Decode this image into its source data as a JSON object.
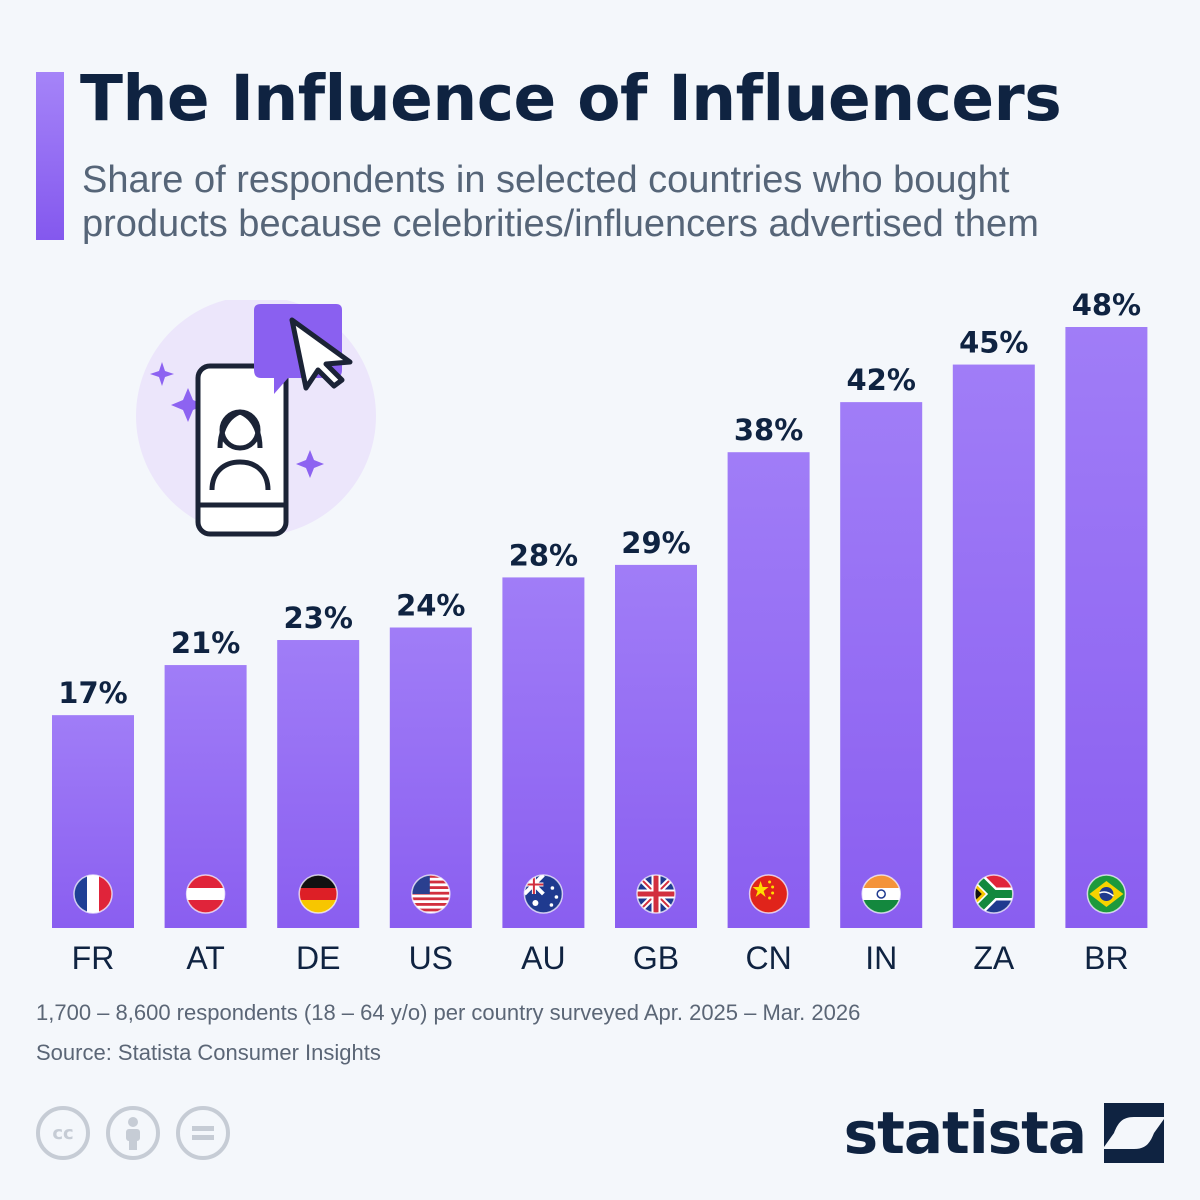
{
  "header": {
    "title": "The Influence of Influencers",
    "subtitle_line1": "Share of respondents in selected countries who bought",
    "subtitle_line2": "products because celebrities/influencers advertised them"
  },
  "colors": {
    "bar_top": "#a07df7",
    "bar_bottom": "#8a5ef0",
    "accent": "#8458ee",
    "text_dark": "#0f2341",
    "text_muted": "#5b6676"
  },
  "chart_data": {
    "type": "bar",
    "title": "The Influence of Influencers",
    "subtitle": "Share of respondents in selected countries who bought products because celebrities/influencers advertised them",
    "categories": [
      "FR",
      "AT",
      "DE",
      "US",
      "AU",
      "GB",
      "CN",
      "IN",
      "ZA",
      "BR"
    ],
    "values": [
      17,
      21,
      23,
      24,
      28,
      29,
      38,
      42,
      45,
      48
    ],
    "value_labels": [
      "17%",
      "21%",
      "23%",
      "24%",
      "28%",
      "29%",
      "38%",
      "42%",
      "45%",
      "48%"
    ],
    "flags": [
      "france-flag-icon",
      "austria-flag-icon",
      "germany-flag-icon",
      "usa-flag-icon",
      "australia-flag-icon",
      "uk-flag-icon",
      "china-flag-icon",
      "india-flag-icon",
      "south-africa-flag-icon",
      "brazil-flag-icon"
    ],
    "unit": "%",
    "ylim": [
      0,
      48
    ],
    "grid": false,
    "legend": "none"
  },
  "footer": {
    "note": "1,700 – 8,600 respondents (18 – 64 y/o) per country surveyed Apr. 2025 – Mar. 2026",
    "source": "Source: Statista Consumer Insights",
    "license_icons": [
      "cc-icon",
      "attribution-icon",
      "no-derivatives-icon"
    ],
    "cc_text": "cc",
    "brand": "statista"
  }
}
